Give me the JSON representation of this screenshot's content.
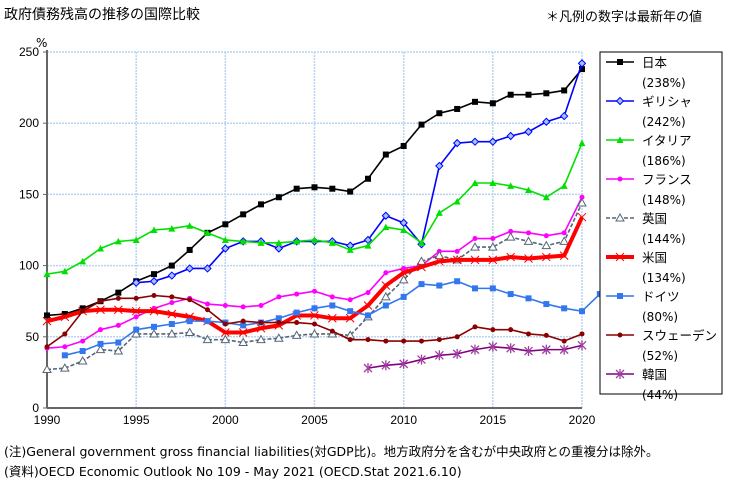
{
  "title": "政府債務残高の推移の国際比較",
  "note_top": "＊凡例の数字は最新年の値",
  "footnote1": "(注)General government gross financial liabilities(対GDP比)。地方政府分を含むが中央政府との重複分は除外。",
  "footnote2": "(資料)OECD Economic Outlook No 109 - May 2021 (OECD.Stat 2021.6.10)",
  "chart_data": {
    "type": "line",
    "ylabel": "%",
    "ylim": [
      0,
      250
    ],
    "yticks": [
      0,
      50,
      100,
      150,
      200,
      250
    ],
    "xlim": [
      1990,
      2020
    ],
    "xticks": [
      1990,
      1995,
      2000,
      2005,
      2010,
      2015,
      2020
    ],
    "grid": true,
    "legend": "right",
    "series": [
      {
        "name": "日本",
        "latest": "(238%)",
        "color": "#000000",
        "marker": "square",
        "start": 1990,
        "values": [
          65,
          66,
          70,
          75,
          81,
          89,
          94,
          100,
          111,
          123,
          129,
          136,
          143,
          148,
          154,
          155,
          154,
          152,
          161,
          178,
          184,
          199,
          207,
          210,
          215,
          214,
          220,
          220,
          221,
          223,
          238
        ]
      },
      {
        "name": "ギリシャ",
        "latest": "(242%)",
        "color": "#0000ff",
        "marker": "diamond",
        "start": 1995,
        "values": [
          88,
          89,
          93,
          98,
          98,
          112,
          117,
          117,
          112,
          117,
          117,
          117,
          114,
          118,
          135,
          130,
          115,
          170,
          186,
          187,
          187,
          191,
          194,
          201,
          205,
          242
        ]
      },
      {
        "name": "イタリア",
        "latest": "(186%)",
        "color": "#00e000",
        "marker": "triangle",
        "start": 1990,
        "values": [
          94,
          96,
          103,
          112,
          117,
          118,
          125,
          126,
          128,
          123,
          118,
          117,
          116,
          116,
          117,
          118,
          116,
          111,
          114,
          127,
          125,
          116,
          137,
          145,
          158,
          158,
          156,
          153,
          148,
          156,
          186
        ]
      },
      {
        "name": "フランス",
        "latest": "(148%)",
        "color": "#ff00ff",
        "marker": "dot",
        "start": 1990,
        "values": [
          42,
          43,
          47,
          55,
          58,
          64,
          70,
          74,
          77,
          73,
          72,
          71,
          72,
          78,
          80,
          82,
          78,
          76,
          81,
          95,
          98,
          100,
          110,
          110,
          119,
          119,
          124,
          123,
          121,
          123,
          148
        ]
      },
      {
        "name": "英国",
        "latest": "(144%)",
        "color": "#556677",
        "marker": "open-triangle",
        "dashed": true,
        "start": 1990,
        "values": [
          27,
          28,
          33,
          41,
          40,
          52,
          52,
          52,
          53,
          48,
          48,
          46,
          48,
          49,
          51,
          52,
          52,
          51,
          64,
          78,
          90,
          103,
          107,
          104,
          113,
          113,
          120,
          117,
          114,
          117,
          144
        ]
      },
      {
        "name": "米国",
        "latest": "(134%)",
        "color": "#ff0000",
        "marker": "x",
        "thick": true,
        "start": 1990,
        "values": [
          61,
          64,
          68,
          69,
          69,
          68,
          68,
          66,
          64,
          61,
          53,
          53,
          56,
          58,
          65,
          65,
          63,
          63,
          72,
          86,
          95,
          99,
          103,
          104,
          104,
          104,
          106,
          105,
          106,
          107,
          134
        ]
      },
      {
        "name": "ドイツ",
        "latest": "(80%)",
        "color": "#3377ee",
        "marker": "square",
        "start": 1991,
        "values": [
          37,
          40,
          45,
          46,
          55,
          57,
          59,
          61,
          61,
          60,
          58,
          60,
          63,
          67,
          70,
          72,
          68,
          65,
          72,
          78,
          87,
          86,
          89,
          84,
          84,
          80,
          77,
          73,
          70,
          68,
          80
        ]
      },
      {
        "name": "スウェーデン",
        "latest": "(52%)",
        "color": "#8b0000",
        "marker": "dot",
        "start": 1990,
        "values": [
          43,
          52,
          68,
          75,
          77,
          77,
          79,
          78,
          76,
          69,
          59,
          61,
          60,
          60,
          60,
          59,
          54,
          48,
          48,
          47,
          47,
          47,
          48,
          50,
          57,
          55,
          55,
          52,
          51,
          47,
          52
        ]
      },
      {
        "name": "韓国",
        "latest": "(44%)",
        "color": "#800080",
        "marker": "asterisk",
        "start": 2008,
        "values": [
          28,
          30,
          31,
          34,
          37,
          38,
          41,
          43,
          42,
          40,
          41,
          41,
          44
        ]
      }
    ]
  }
}
